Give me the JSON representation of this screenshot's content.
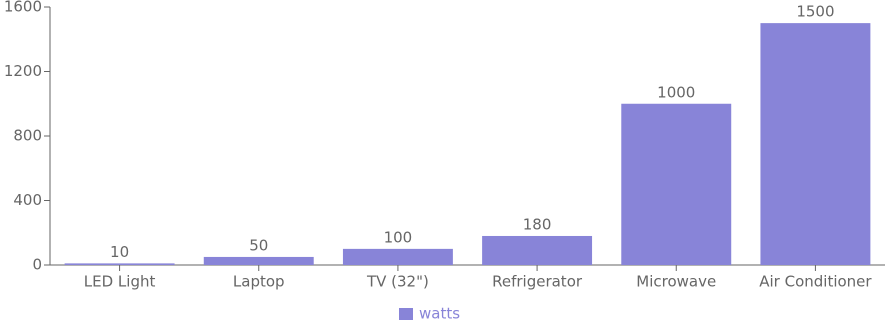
{
  "chart_data": {
    "type": "bar",
    "categories": [
      "LED Light",
      "Laptop",
      "TV (32\")",
      "Refrigerator",
      "Microwave",
      "Air Conditioner"
    ],
    "series": [
      {
        "name": "watts",
        "color": "#8884d8",
        "values": [
          10,
          50,
          100,
          180,
          1000,
          1500
        ]
      }
    ],
    "ylim": [
      0,
      1600
    ],
    "yticks": [
      0,
      400,
      800,
      1200,
      1600
    ],
    "legend": "bottom"
  }
}
